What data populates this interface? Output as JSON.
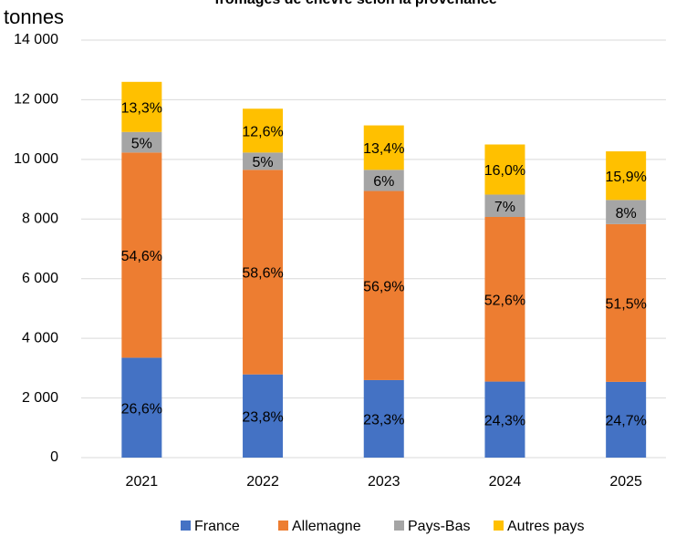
{
  "chart_data": {
    "type": "stacked_bar",
    "title": "fromages de chèvre selon la provenance",
    "y_label": "tonnes",
    "categories": [
      "2021",
      "2022",
      "2023",
      "2024",
      "2025"
    ],
    "series": [
      {
        "name": "France",
        "color": "#4472c4",
        "values": [
          3350,
          2790,
          2600,
          2550,
          2540
        ],
        "value_labels": [
          "26,6%",
          "23,8%",
          "23,3%",
          "24,3%",
          "24,7%"
        ]
      },
      {
        "name": "Allemagne",
        "color": "#ed7d31",
        "values": [
          6880,
          6860,
          6340,
          5520,
          5290
        ],
        "value_labels": [
          "54,6%",
          "58,6%",
          "56,9%",
          "52,6%",
          "51,5%"
        ]
      },
      {
        "name": "Pays-Bas",
        "color": "#a5a5a5",
        "values": [
          690,
          580,
          710,
          750,
          810
        ],
        "value_labels": [
          "5%",
          "5%",
          "6%",
          "7%",
          "8%"
        ]
      },
      {
        "name": "Autres pays",
        "color": "#ffc000",
        "values": [
          1680,
          1470,
          1490,
          1680,
          1630
        ],
        "value_labels": [
          "13,3%",
          "12,6%",
          "13,4%",
          "16,0%",
          "15,9%"
        ]
      }
    ],
    "ylim": [
      0,
      14000
    ],
    "yticks": [
      0,
      {
        "value": 2000,
        "label": "2 000"
      },
      {
        "value": 4000,
        "label": "4 000"
      },
      {
        "value": 6000,
        "label": "6 000"
      },
      {
        "value": 8000,
        "label": "8 000"
      },
      {
        "value": 10000,
        "label": "10 000"
      },
      {
        "value": 12000,
        "label": "12 000"
      },
      {
        "value": 14000,
        "label": "14 000"
      }
    ],
    "grid": true,
    "legend": "bottom"
  }
}
